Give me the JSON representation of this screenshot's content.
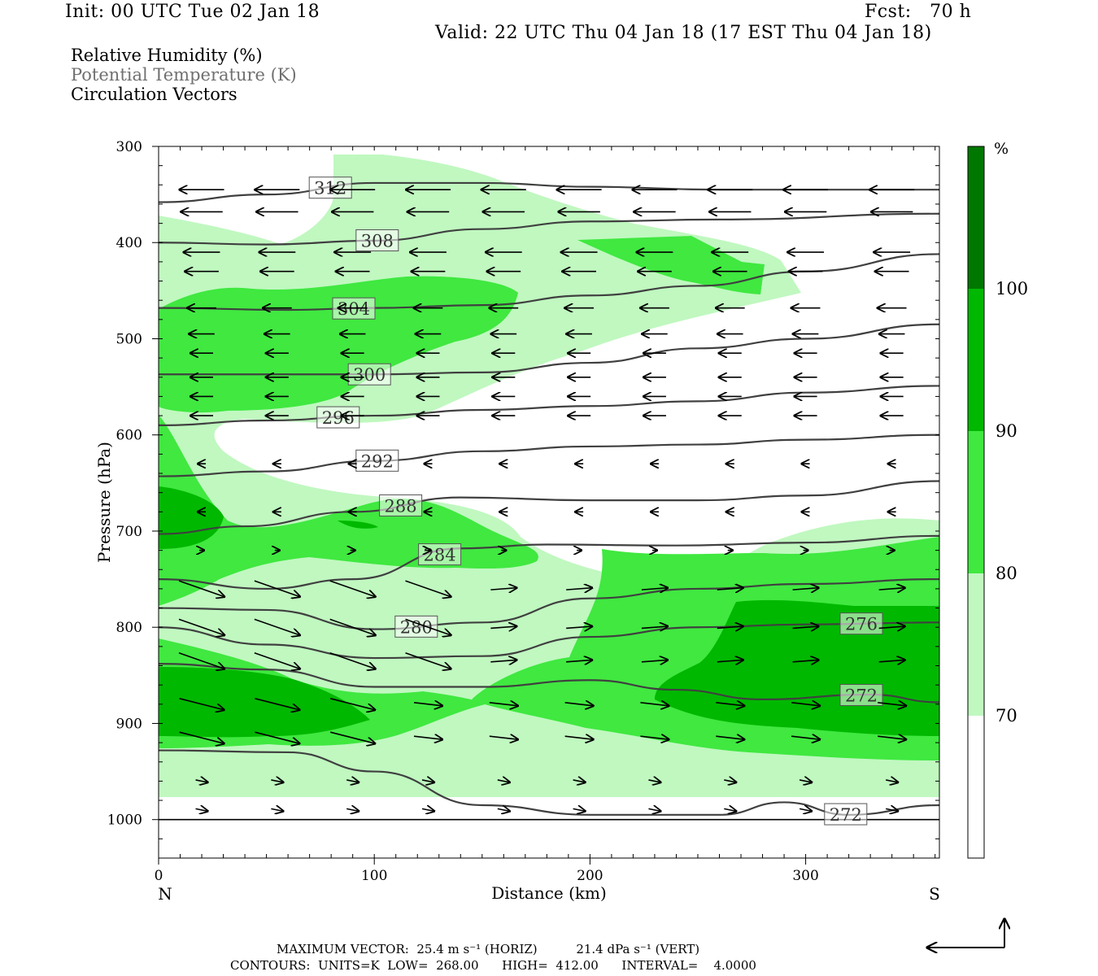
{
  "header": {
    "init": "Init: 00 UTC Tue 02 Jan 18",
    "fcst": "Fcst:   70 h",
    "valid": "Valid: 22 UTC Thu 04 Jan 18 (17 EST Thu 04 Jan 18)"
  },
  "legend": {
    "line1": "Relative Humidity (%)",
    "line2": "Potential Temperature (K)",
    "line3": "Circulation Vectors"
  },
  "footer": {
    "max_vector": "MAXIMUM VECTOR:  25.4 m s⁻¹ (HORIZ)          21.4 dPa s⁻¹ (VERT)",
    "contours": "CONTOURS:  UNITS=K  LOW=  268.00      HIGH=  412.00      INTERVAL=    4.0000"
  },
  "colors": {
    "rh_70_80": "#c0f8c0",
    "rh_80_90": "#40e840",
    "rh_90_100": "#00b800",
    "rh_100": "#007800",
    "theta_line": "#404040",
    "vector": "#000000"
  },
  "chart_data": {
    "type": "cross-section",
    "xlabel": "Distance (km)",
    "ylabel": "Pressure (hPa)",
    "x_ticks": [
      0,
      100,
      200,
      300
    ],
    "y_ticks": [
      300,
      400,
      500,
      600,
      700,
      800,
      900,
      1000
    ],
    "xlim": [
      0,
      362
    ],
    "ylim": [
      300,
      1040
    ],
    "y_reversed": true,
    "end_labels": {
      "left": "N",
      "right": "S"
    },
    "colorbar": {
      "unit": "%",
      "ticks": [
        "100",
        "90",
        "80",
        "70"
      ],
      "colors": [
        "#007800",
        "#00b800",
        "#40e840",
        "#c0f8c0",
        "#ffffff"
      ]
    },
    "theta_contours": [
      {
        "value": 312,
        "points": [
          [
            0,
            358
          ],
          [
            50,
            350
          ],
          [
            100,
            338
          ],
          [
            150,
            338
          ],
          [
            200,
            342
          ],
          [
            260,
            345
          ],
          [
            362,
            345
          ]
        ]
      },
      {
        "value": 308,
        "points": [
          [
            0,
            400
          ],
          [
            50,
            402
          ],
          [
            100,
            398
          ],
          [
            150,
            386
          ],
          [
            200,
            378
          ],
          [
            260,
            376
          ],
          [
            362,
            370
          ]
        ]
      },
      {
        "value": 304,
        "points": [
          [
            0,
            468
          ],
          [
            60,
            470
          ],
          [
            100,
            468
          ],
          [
            150,
            465
          ],
          [
            200,
            455
          ],
          [
            250,
            445
          ],
          [
            300,
            430
          ],
          [
            362,
            412
          ]
        ]
      },
      {
        "value": 300,
        "points": [
          [
            0,
            537
          ],
          [
            60,
            537
          ],
          [
            100,
            537
          ],
          [
            150,
            535
          ],
          [
            200,
            525
          ],
          [
            250,
            510
          ],
          [
            300,
            500
          ],
          [
            362,
            485
          ]
        ]
      },
      {
        "value": 296,
        "points": [
          [
            0,
            590
          ],
          [
            50,
            585
          ],
          [
            100,
            580
          ],
          [
            150,
            574
          ],
          [
            200,
            570
          ],
          [
            250,
            565
          ],
          [
            300,
            556
          ],
          [
            362,
            549
          ]
        ]
      },
      {
        "value": 292,
        "points": [
          [
            0,
            643
          ],
          [
            50,
            638
          ],
          [
            100,
            627
          ],
          [
            150,
            617
          ],
          [
            200,
            612
          ],
          [
            250,
            610
          ],
          [
            300,
            605
          ],
          [
            362,
            600
          ]
        ]
      },
      {
        "value": 288,
        "points": [
          [
            0,
            703
          ],
          [
            40,
            695
          ],
          [
            90,
            680
          ],
          [
            140,
            665
          ],
          [
            200,
            668
          ],
          [
            250,
            668
          ],
          [
            300,
            663
          ],
          [
            362,
            648
          ]
        ]
      },
      {
        "value": 284,
        "points": [
          [
            0,
            750
          ],
          [
            50,
            760
          ],
          [
            90,
            750
          ],
          [
            140,
            718
          ],
          [
            180,
            714
          ],
          [
            240,
            715
          ],
          [
            300,
            712
          ],
          [
            362,
            705
          ]
        ]
      },
      {
        "value": 280,
        "points": [
          [
            0,
            780
          ],
          [
            50,
            782
          ],
          [
            100,
            802
          ],
          [
            150,
            795
          ],
          [
            200,
            770
          ],
          [
            250,
            760
          ],
          [
            300,
            755
          ],
          [
            362,
            750
          ]
        ]
      },
      {
        "value": 276,
        "points": [
          [
            0,
            800
          ],
          [
            50,
            818
          ],
          [
            100,
            832
          ],
          [
            150,
            830
          ],
          [
            200,
            810
          ],
          [
            250,
            800
          ],
          [
            300,
            797
          ],
          [
            362,
            795
          ]
        ]
      },
      {
        "value": 272,
        "points": [
          [
            0,
            838
          ],
          [
            50,
            844
          ],
          [
            100,
            862
          ],
          [
            150,
            862
          ],
          [
            200,
            855
          ],
          [
            240,
            865
          ],
          [
            280,
            875
          ],
          [
            330,
            870
          ],
          [
            362,
            878
          ]
        ]
      },
      {
        "value": 272,
        "points": [
          [
            0,
            928
          ],
          [
            60,
            930
          ],
          [
            100,
            950
          ],
          [
            150,
            985
          ],
          [
            200,
            995
          ],
          [
            260,
            995
          ],
          [
            290,
            982
          ],
          [
            320,
            995
          ],
          [
            362,
            985
          ]
        ]
      }
    ],
    "ground_level_hPa": 1000,
    "max_vector_horiz": 25.4,
    "max_vector_vert": 21.4,
    "contour_low": 268.0,
    "contour_high": 412.0,
    "contour_interval": 4.0
  }
}
